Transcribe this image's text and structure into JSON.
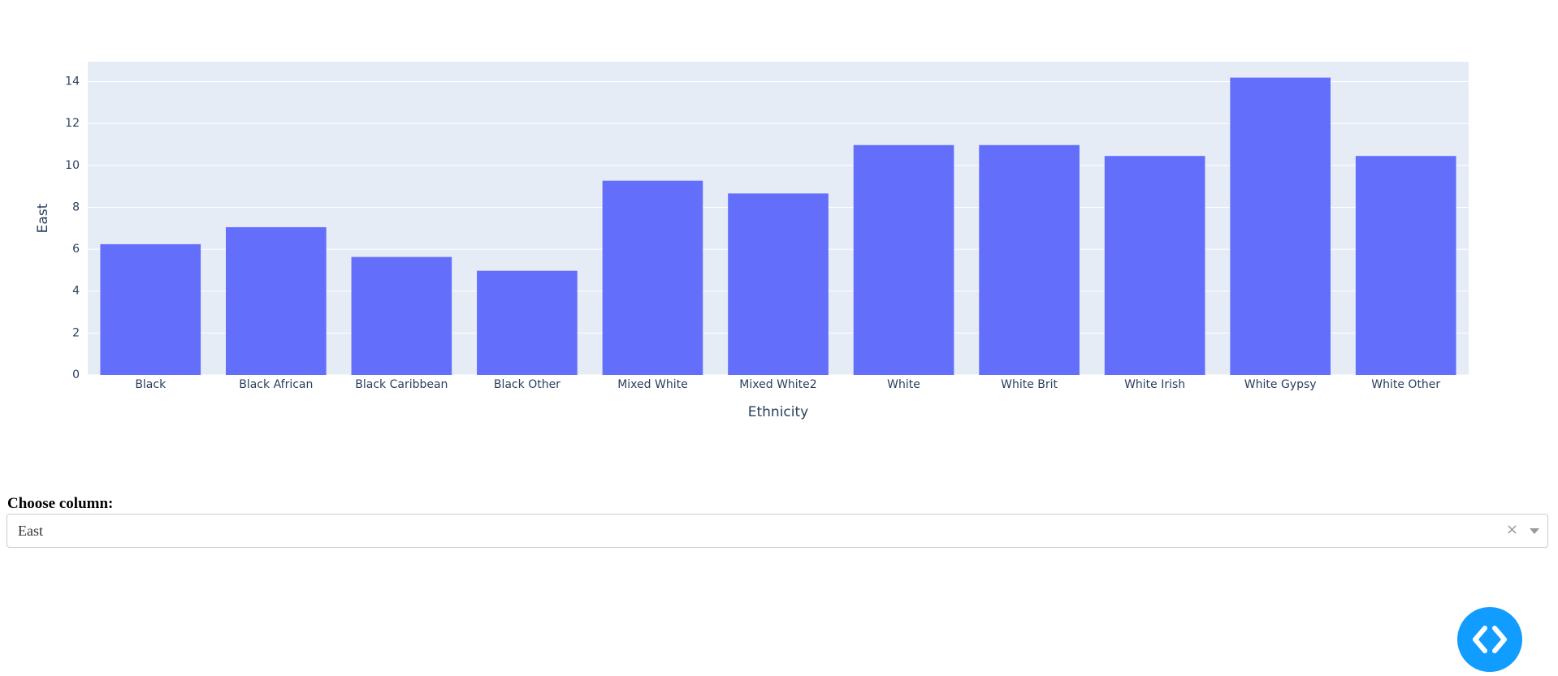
{
  "chart_data": {
    "type": "bar",
    "categories": [
      "Black",
      "Black African",
      "Black Caribbean",
      "Black Other",
      "Mixed White",
      "Mixed White2",
      "White",
      "White Brit",
      "White Irish",
      "White Gypsy",
      "White Other"
    ],
    "values": [
      6.24,
      7.05,
      5.63,
      4.97,
      9.27,
      8.66,
      10.97,
      10.97,
      10.45,
      14.19,
      10.45
    ],
    "color": "#636efa",
    "xlabel": "Ethnicity",
    "ylabel": "East",
    "ylim": [
      0,
      14.95
    ],
    "yticks": [
      0,
      2,
      4,
      6,
      8,
      10,
      12,
      14
    ],
    "grid": true
  },
  "dropdown": {
    "label": "Choose column:",
    "selected": "East"
  }
}
